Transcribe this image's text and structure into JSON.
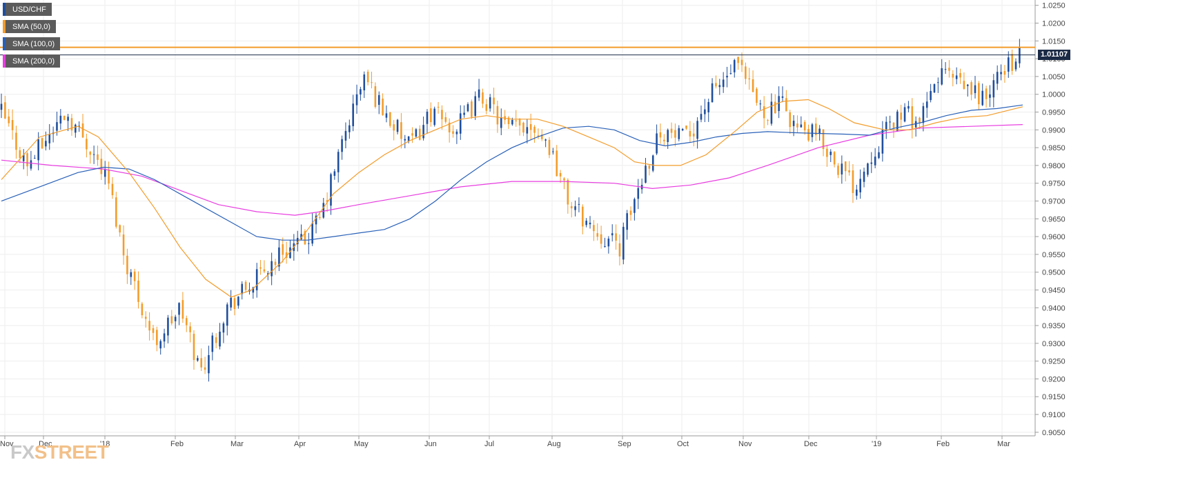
{
  "legend": [
    {
      "label": "USD/CHF",
      "color": "#1f4e9c"
    },
    {
      "label": "SMA (50,0)",
      "color": "#f39c2a"
    },
    {
      "label": "SMA (100,0)",
      "color": "#2860b8"
    },
    {
      "label": "SMA (200,0)",
      "color": "#e83ce0"
    }
  ],
  "logo": {
    "part1": "FX",
    "part2": "STREET"
  },
  "chart_data": {
    "type": "candlestick",
    "symbol": "USD/CHF",
    "y_ticks": [
      "1.0250",
      "1.0200",
      "1.0150",
      "1.0100",
      "1.0050",
      "1.0000",
      "0.9950",
      "0.9900",
      "0.9850",
      "0.9800",
      "0.9750",
      "0.9700",
      "0.9650",
      "0.9600",
      "0.9550",
      "0.9500",
      "0.9450",
      "0.9400",
      "0.9350",
      "0.9300",
      "0.9250",
      "0.9200",
      "0.9150",
      "0.9100",
      "0.9050"
    ],
    "ylim": [
      0.904,
      1.0265
    ],
    "x_labels": [
      "Nov",
      "Dec",
      "'18",
      "Feb",
      "Mar",
      "Apr",
      "May",
      "Jun",
      "Jul",
      "Aug",
      "Sep",
      "Oct",
      "Nov",
      "Dec",
      "'19",
      "Feb",
      "Mar"
    ],
    "last_price": "1.01107",
    "last_price_value": 1.01107,
    "resistance_level": 1.0132,
    "up_color": "#1f4e9c",
    "down_color": "#f39c2a",
    "grid": true,
    "legend_position": "top-left",
    "price_path": [
      [
        0,
        0.995
      ],
      [
        10,
        0.98
      ],
      [
        25,
        0.995
      ],
      [
        35,
        0.985
      ],
      [
        42,
        0.975
      ],
      [
        48,
        0.955
      ],
      [
        60,
        0.93
      ],
      [
        70,
        0.94
      ],
      [
        78,
        0.922
      ],
      [
        88,
        0.94
      ],
      [
        100,
        0.948
      ],
      [
        110,
        0.956
      ],
      [
        118,
        0.958
      ],
      [
        125,
        0.965
      ],
      [
        135,
        0.99
      ],
      [
        142,
        1.005
      ],
      [
        150,
        0.995
      ],
      [
        160,
        0.985
      ],
      [
        168,
        0.995
      ],
      [
        178,
        0.99
      ],
      [
        188,
        1.0
      ],
      [
        198,
        0.99
      ],
      [
        208,
        0.992
      ],
      [
        215,
        0.985
      ],
      [
        222,
        0.97
      ],
      [
        232,
        0.962
      ],
      [
        242,
        0.957
      ],
      [
        250,
        0.975
      ],
      [
        258,
        0.99
      ],
      [
        268,
        0.987
      ],
      [
        278,
        1.0
      ],
      [
        288,
        1.008
      ],
      [
        298,
        0.995
      ],
      [
        306,
        0.997
      ],
      [
        312,
        0.99
      ],
      [
        320,
        0.988
      ],
      [
        328,
        0.98
      ],
      [
        334,
        0.974
      ],
      [
        342,
        0.985
      ],
      [
        352,
        0.995
      ],
      [
        360,
        0.992
      ],
      [
        368,
        1.007
      ],
      [
        376,
        1.002
      ],
      [
        386,
        0.999
      ],
      [
        393,
        1.008
      ],
      [
        400,
        1.0111
      ]
    ],
    "sma50": [
      [
        0,
        0.976
      ],
      [
        15,
        0.988
      ],
      [
        30,
        0.991
      ],
      [
        38,
        0.988
      ],
      [
        50,
        0.978
      ],
      [
        60,
        0.968
      ],
      [
        70,
        0.957
      ],
      [
        80,
        0.948
      ],
      [
        90,
        0.943
      ],
      [
        98,
        0.945
      ],
      [
        110,
        0.953
      ],
      [
        120,
        0.962
      ],
      [
        130,
        0.972
      ],
      [
        140,
        0.978
      ],
      [
        150,
        0.983
      ],
      [
        160,
        0.987
      ],
      [
        170,
        0.99
      ],
      [
        180,
        0.993
      ],
      [
        190,
        0.994
      ],
      [
        200,
        0.993
      ],
      [
        210,
        0.993
      ],
      [
        220,
        0.991
      ],
      [
        230,
        0.988
      ],
      [
        240,
        0.985
      ],
      [
        248,
        0.981
      ],
      [
        256,
        0.98
      ],
      [
        266,
        0.98
      ],
      [
        276,
        0.983
      ],
      [
        288,
        0.99
      ],
      [
        296,
        0.995
      ],
      [
        306,
        0.998
      ],
      [
        316,
        0.9985
      ],
      [
        324,
        0.996
      ],
      [
        334,
        0.992
      ],
      [
        346,
        0.99
      ],
      [
        356,
        0.99
      ],
      [
        366,
        0.992
      ],
      [
        376,
        0.9935
      ],
      [
        386,
        0.994
      ],
      [
        400,
        0.9965
      ]
    ],
    "sma100": [
      [
        0,
        0.97
      ],
      [
        15,
        0.974
      ],
      [
        30,
        0.978
      ],
      [
        40,
        0.9795
      ],
      [
        50,
        0.979
      ],
      [
        60,
        0.976
      ],
      [
        70,
        0.972
      ],
      [
        80,
        0.968
      ],
      [
        90,
        0.964
      ],
      [
        100,
        0.96
      ],
      [
        110,
        0.959
      ],
      [
        120,
        0.959
      ],
      [
        130,
        0.96
      ],
      [
        140,
        0.961
      ],
      [
        150,
        0.962
      ],
      [
        160,
        0.965
      ],
      [
        170,
        0.97
      ],
      [
        180,
        0.976
      ],
      [
        190,
        0.981
      ],
      [
        200,
        0.985
      ],
      [
        210,
        0.988
      ],
      [
        220,
        0.9905
      ],
      [
        230,
        0.991
      ],
      [
        240,
        0.99
      ],
      [
        250,
        0.987
      ],
      [
        260,
        0.9855
      ],
      [
        270,
        0.9865
      ],
      [
        280,
        0.988
      ],
      [
        290,
        0.989
      ],
      [
        300,
        0.9895
      ],
      [
        310,
        0.9892
      ],
      [
        320,
        0.989
      ],
      [
        330,
        0.9888
      ],
      [
        340,
        0.9885
      ],
      [
        350,
        0.9905
      ],
      [
        360,
        0.992
      ],
      [
        370,
        0.994
      ],
      [
        380,
        0.9955
      ],
      [
        390,
        0.996
      ],
      [
        400,
        0.997
      ]
    ],
    "sma200": [
      [
        0,
        0.9815
      ],
      [
        20,
        0.98
      ],
      [
        40,
        0.979
      ],
      [
        55,
        0.977
      ],
      [
        70,
        0.973
      ],
      [
        85,
        0.969
      ],
      [
        100,
        0.967
      ],
      [
        115,
        0.966
      ],
      [
        125,
        0.967
      ],
      [
        140,
        0.969
      ],
      [
        160,
        0.9715
      ],
      [
        180,
        0.974
      ],
      [
        200,
        0.9755
      ],
      [
        220,
        0.9755
      ],
      [
        240,
        0.975
      ],
      [
        255,
        0.9735
      ],
      [
        270,
        0.9745
      ],
      [
        285,
        0.9765
      ],
      [
        300,
        0.98
      ],
      [
        320,
        0.985
      ],
      [
        340,
        0.9885
      ],
      [
        360,
        0.9905
      ],
      [
        380,
        0.991
      ],
      [
        400,
        0.9915
      ]
    ]
  }
}
